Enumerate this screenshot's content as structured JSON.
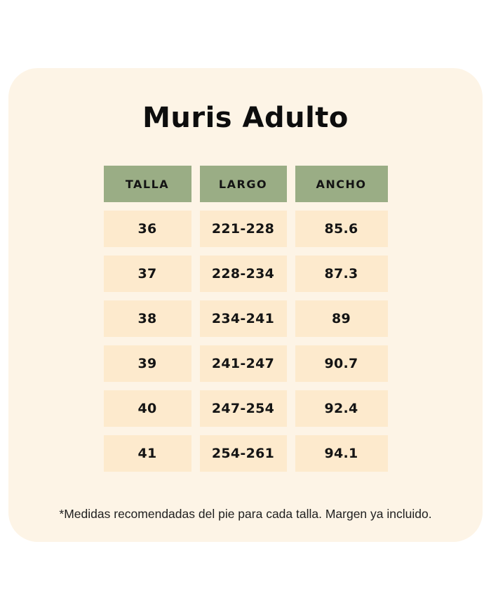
{
  "colors": {
    "page_bg": "#ffffff",
    "card_bg": "#fdf4e6",
    "header_bg": "#9aad85",
    "cell_bg": "#fdeacd",
    "title_color": "#0d0d0d",
    "table_text": "#141414",
    "footnote_color": "#1f1f1f"
  },
  "card": {
    "title": "Muris Adulto"
  },
  "table": {
    "columns": [
      "TALLA",
      "LARGO",
      "ANCHO"
    ],
    "rows": [
      [
        "36",
        "221-228",
        "85.6"
      ],
      [
        "37",
        "228-234",
        "87.3"
      ],
      [
        "38",
        "234-241",
        "89"
      ],
      [
        "39",
        "241-247",
        "90.7"
      ],
      [
        "40",
        "247-254",
        "92.4"
      ],
      [
        "41",
        "254-261",
        "94.1"
      ]
    ]
  },
  "footnote": "*Medidas recomendadas del pie para cada talla. Margen ya incluido."
}
